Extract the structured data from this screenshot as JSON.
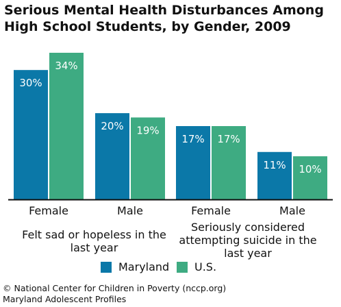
{
  "title": "Serious Mental Health Disturbances Among High School Students, by Gender, 2009",
  "chart_data": {
    "type": "bar",
    "categories": [
      "Female",
      "Male",
      "Female",
      "Male"
    ],
    "groups": [
      {
        "label": "Felt sad or hopeless in the last year",
        "categories": [
          "Female",
          "Male"
        ]
      },
      {
        "label": "Seriously considered attempting suicide in the last year",
        "categories": [
          "Female",
          "Male"
        ]
      }
    ],
    "series": [
      {
        "name": "Maryland",
        "color": "#0b78a8",
        "values": [
          30,
          20,
          17,
          11
        ],
        "labels": [
          "30%",
          "20%",
          "17%",
          "11%"
        ]
      },
      {
        "name": "U.S.",
        "color": "#3eab82",
        "values": [
          34,
          19,
          17,
          10
        ],
        "labels": [
          "34%",
          "19%",
          "17%",
          "10%"
        ]
      }
    ],
    "ylim": [
      0,
      34
    ],
    "grid": false,
    "legend_position": "bottom"
  },
  "footer": {
    "line1": "© National Center for Children in Poverty (nccp.org)",
    "line2": "Maryland Adolescent Profiles"
  }
}
